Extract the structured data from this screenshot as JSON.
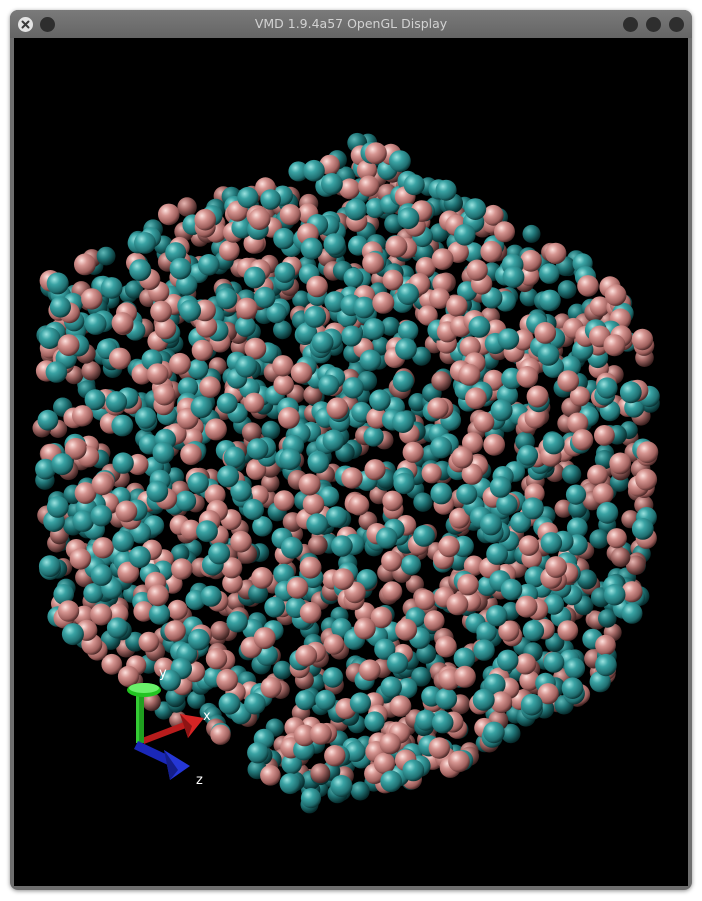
{
  "window": {
    "title": "VMD 1.9.4a57 OpenGL Display",
    "buttons": [
      "close",
      "menu",
      "minimize",
      "maximize",
      "shade"
    ]
  },
  "scene": {
    "background": "#000000",
    "atom_colors": {
      "teal": "#2f8d8f",
      "pink": "#cf8a86"
    },
    "axes": {
      "y_label": "y",
      "x_label": "x",
      "z_label": "z",
      "y_color": "#22cc22",
      "x_color": "#cc1f1f",
      "z_color": "#1f2fcc"
    }
  }
}
